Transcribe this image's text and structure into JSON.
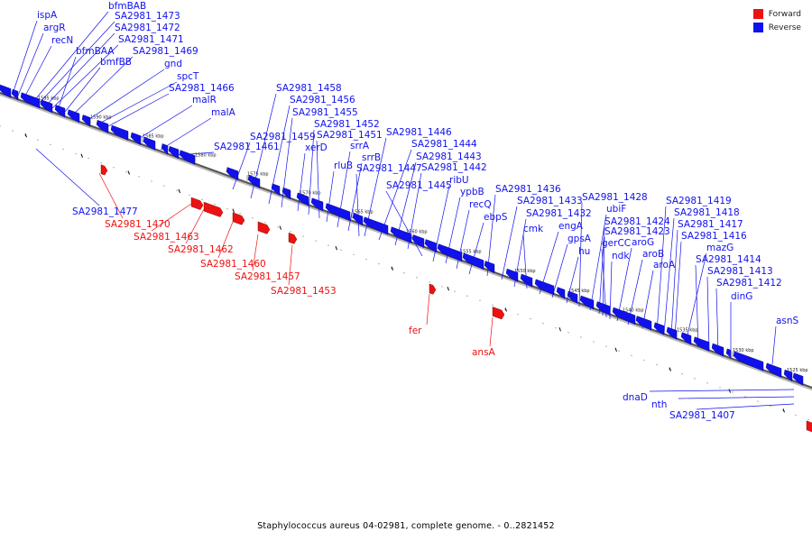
{
  "caption": "Staphylococcus aureus 04-02981, complete genome. - 0..2821452",
  "legend": [
    {
      "label": "Forward",
      "color": "#ee1111"
    },
    {
      "label": "Reverse",
      "color": "#1111ee"
    }
  ],
  "colors": {
    "forward": "#ee1111",
    "reverse": "#1111ee",
    "backbone": "#555555"
  },
  "ticks": [
    "1595 kbp",
    "1590 kbp",
    "1585 kbp",
    "1580 kbp",
    "1575 kbp",
    "1570 kbp",
    "1565 kbp",
    "1560 kbp",
    "1555 kbp",
    "1550 kbp",
    "1545 kbp",
    "1540 kbp",
    "1535 kbp",
    "1530 kbp",
    "1525 kbp"
  ],
  "reverse_genes": [
    "ispA",
    "argR",
    "recN",
    "bfmBAB",
    "SA2981_1473",
    "SA2981_1472",
    "SA2981_1471",
    "bfmBAA",
    "bmfBB",
    "SA2981_1469",
    "gnd",
    "spcT",
    "SA2981_1466",
    "malR",
    "malA",
    "SA2981_1461",
    "SA2981_1459",
    "SA2981_1458",
    "SA2981_1456",
    "SA2981_1455",
    "xerD",
    "SA2981_1452",
    "SA2981_1451",
    "rluB",
    "srrA",
    "srrB",
    "SA2981_1447",
    "SA2981_1446",
    "SA2981_1444",
    "SA2981_1443",
    "SA2981_1442",
    "SA2981_1445",
    "ribU",
    "ypbB",
    "recQ",
    "ebpS",
    "SA2981_1436",
    "SA2981_1433",
    "SA2981_1432",
    "cmk",
    "engA",
    "gpsA",
    "hu",
    "SA2981_1428",
    "ubiF",
    "SA2981_1424",
    "SA2981_1423",
    "gerCC",
    "ndk",
    "aroG",
    "aroB",
    "aroA",
    "SA2981_1419",
    "SA2981_1418",
    "SA2981_1417",
    "SA2981_1416",
    "mazG",
    "SA2981_1414",
    "SA2981_1413",
    "SA2981_1412",
    "dinG",
    "asnS",
    "SA2981_1477",
    "dnaD",
    "nth",
    "SA2981_1407"
  ],
  "forward_genes": [
    "SA2981_1470",
    "SA2981_1463",
    "SA2981_1462",
    "SA2981_1460",
    "SA2981_1457",
    "SA2981_1453",
    "fer",
    "ansA"
  ]
}
